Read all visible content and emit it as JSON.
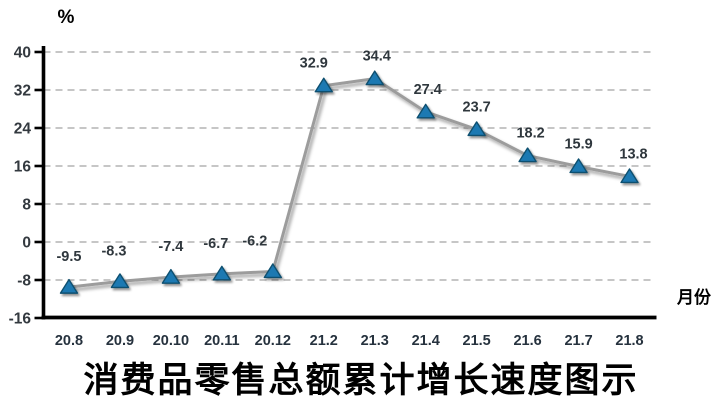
{
  "chart_data": {
    "type": "line",
    "title": "消费品零售总额累计增长速度图示",
    "y_axis_unit_label": "%",
    "x_axis_label": "月份",
    "categories": [
      "20.8",
      "20.9",
      "20.10",
      "20.11",
      "20.12",
      "21.2",
      "21.3",
      "21.4",
      "21.5",
      "21.6",
      "21.7",
      "21.8"
    ],
    "values": [
      -9.5,
      -8.3,
      -7.4,
      -6.7,
      -6.2,
      32.9,
      34.4,
      27.4,
      23.7,
      18.2,
      15.9,
      13.8
    ],
    "data_labels": [
      "-9.5",
      "-8.3",
      "-7.4",
      "-6.7",
      "-6.2",
      "32.9",
      "34.4",
      "27.4",
      "23.7",
      "18.2",
      "15.9",
      "13.8"
    ],
    "y_ticks": [
      40,
      32,
      24,
      16,
      8,
      0,
      -8,
      -16
    ],
    "ylim": [
      -16,
      40
    ],
    "xlabel": "月份",
    "ylabel": "%",
    "grid": "horizontal-dashed",
    "legend": "none",
    "marker": "triangle-up",
    "colors": {
      "marker_fill": "#1e79b2",
      "marker_stroke": "#10506f",
      "line": "#9c9c9c",
      "grid": "#b3b3b3",
      "axis": "#000000",
      "y_tick_label": "#33393f",
      "x_tick_label": "#26323e",
      "data_label": "#2f373d",
      "title": "#000000"
    },
    "layout": {
      "legend_position": "none",
      "label_dx": [
        0,
        -6,
        0,
        -6,
        -18,
        -10,
        2,
        2,
        0,
        3,
        0,
        4
      ],
      "label_dy": [
        -8,
        -8,
        -8,
        -8,
        -8,
        0,
        0,
        0,
        0,
        0,
        0,
        0
      ]
    }
  }
}
